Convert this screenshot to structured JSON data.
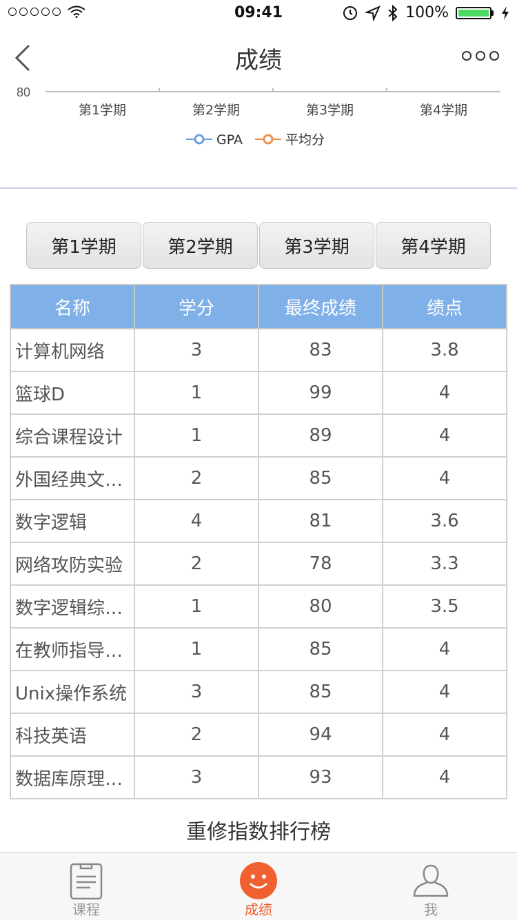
{
  "status": {
    "time": "09:41",
    "battery": "100%"
  },
  "nav": {
    "title": "成绩"
  },
  "chart_data": {
    "type": "line",
    "categories": [
      "第1学期",
      "第2学期",
      "第3学期",
      "第4学期"
    ],
    "y_tick_visible": "80",
    "series": [
      {
        "name": "GPA",
        "color": "#6b9fe6"
      },
      {
        "name": "平均分",
        "color": "#f0904a"
      }
    ]
  },
  "tabs": [
    {
      "label": "第1学期"
    },
    {
      "label": "第2学期"
    },
    {
      "label": "第3学期"
    },
    {
      "label": "第4学期"
    }
  ],
  "table": {
    "headers": [
      "名称",
      "学分",
      "最终成绩",
      "绩点"
    ],
    "rows": [
      {
        "name": "计算机网络",
        "credit": "3",
        "score": "83",
        "gpa": "3.8"
      },
      {
        "name": "篮球D",
        "credit": "1",
        "score": "99",
        "gpa": "4"
      },
      {
        "name": "综合课程设计",
        "credit": "1",
        "score": "89",
        "gpa": "4"
      },
      {
        "name": "外国经典文…",
        "credit": "2",
        "score": "85",
        "gpa": "4"
      },
      {
        "name": "数字逻辑",
        "credit": "4",
        "score": "81",
        "gpa": "3.6"
      },
      {
        "name": "网络攻防实验",
        "credit": "2",
        "score": "78",
        "gpa": "3.3"
      },
      {
        "name": "数字逻辑综…",
        "credit": "1",
        "score": "80",
        "gpa": "3.5"
      },
      {
        "name": "在教师指导…",
        "credit": "1",
        "score": "85",
        "gpa": "4"
      },
      {
        "name": "Unix操作系统",
        "credit": "3",
        "score": "85",
        "gpa": "4"
      },
      {
        "name": "科技英语",
        "credit": "2",
        "score": "94",
        "gpa": "4"
      },
      {
        "name": "数据库原理…",
        "credit": "3",
        "score": "93",
        "gpa": "4"
      }
    ]
  },
  "section": {
    "title": "重修指数排行榜"
  },
  "tabbar": {
    "items": [
      {
        "label": "课程",
        "icon": "course-icon"
      },
      {
        "label": "成绩",
        "icon": "smile-icon"
      },
      {
        "label": "我",
        "icon": "user-icon"
      }
    ]
  },
  "colors": {
    "accent": "#f06030",
    "header": "#7fb0e8",
    "gpa": "#6b9fe6",
    "avg": "#f0904a"
  }
}
